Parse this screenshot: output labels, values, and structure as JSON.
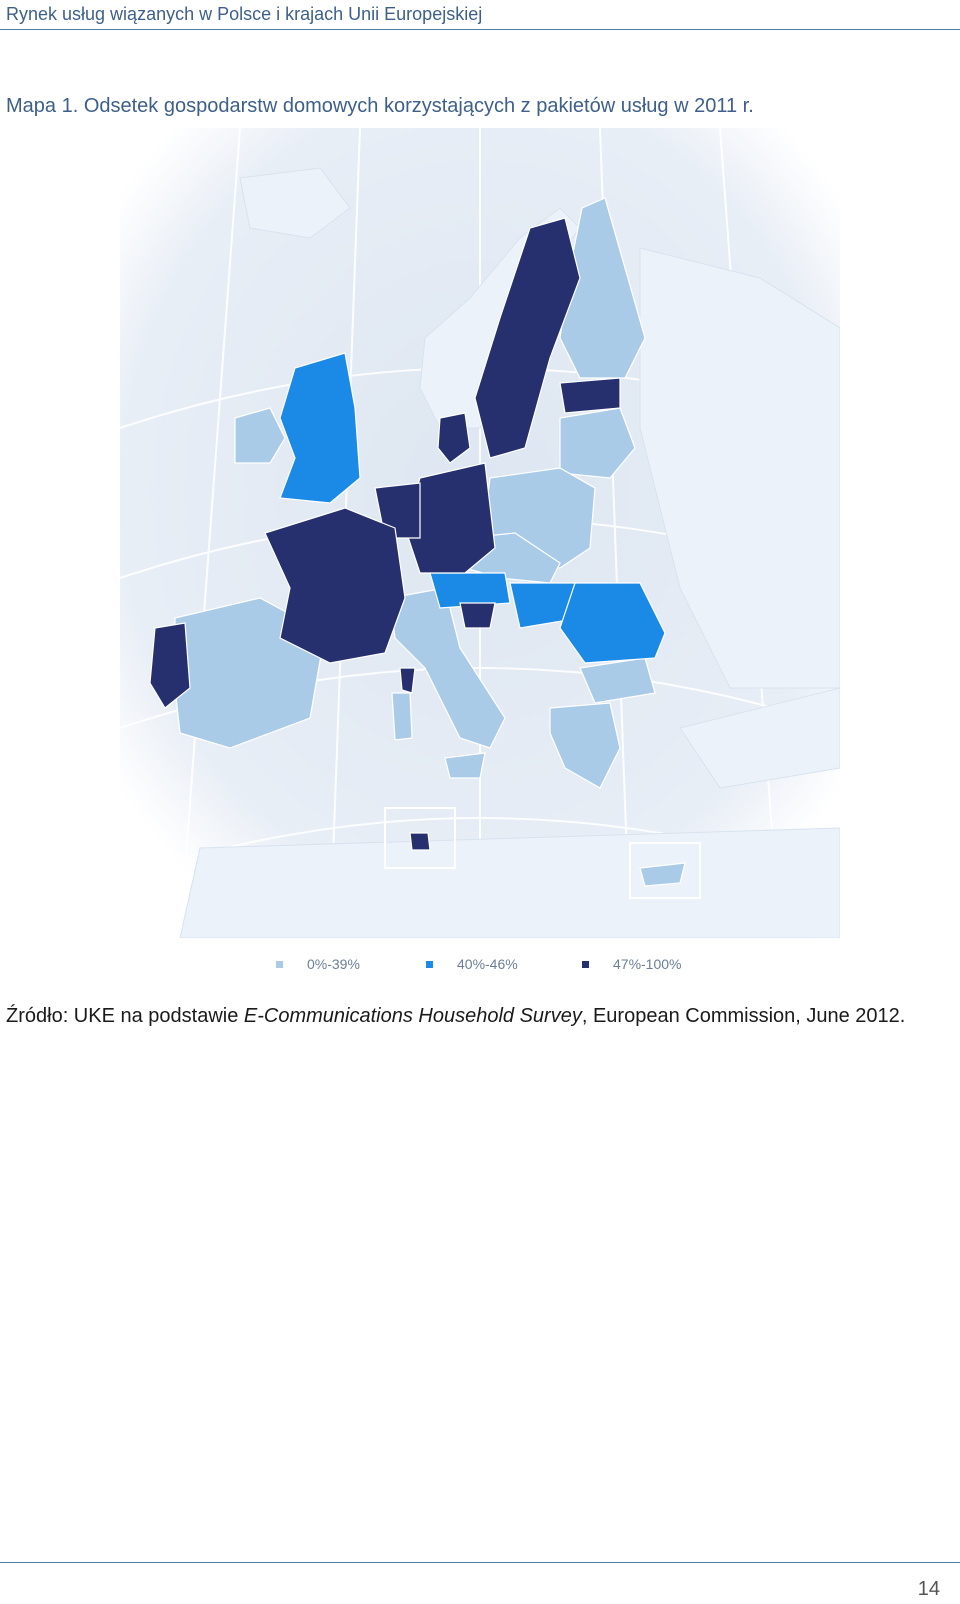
{
  "header": {
    "title": "Rynek usług wiązanych w Polsce i krajach Unii Europejskiej"
  },
  "caption": "Mapa 1. Odsetek gospodarstw domowych korzystających z pakietów usług w 2011 r.",
  "map": {
    "legend": [
      {
        "label": "0%-39%",
        "color": "#a9cbe8"
      },
      {
        "label": "40%-46%",
        "color": "#1a8ae6"
      },
      {
        "label": "47%-100%",
        "color": "#27306f"
      }
    ],
    "colors": {
      "background": "#e3ebf4",
      "land": "#ebf1f8",
      "graticule": "#ffffff"
    }
  },
  "source": {
    "prefix": "Źródło: UKE na podstawie ",
    "title_italic": "E-Communications Household Survey",
    "suffix": ", European Commission, June 2012."
  },
  "footer": {
    "page_number": "14"
  }
}
